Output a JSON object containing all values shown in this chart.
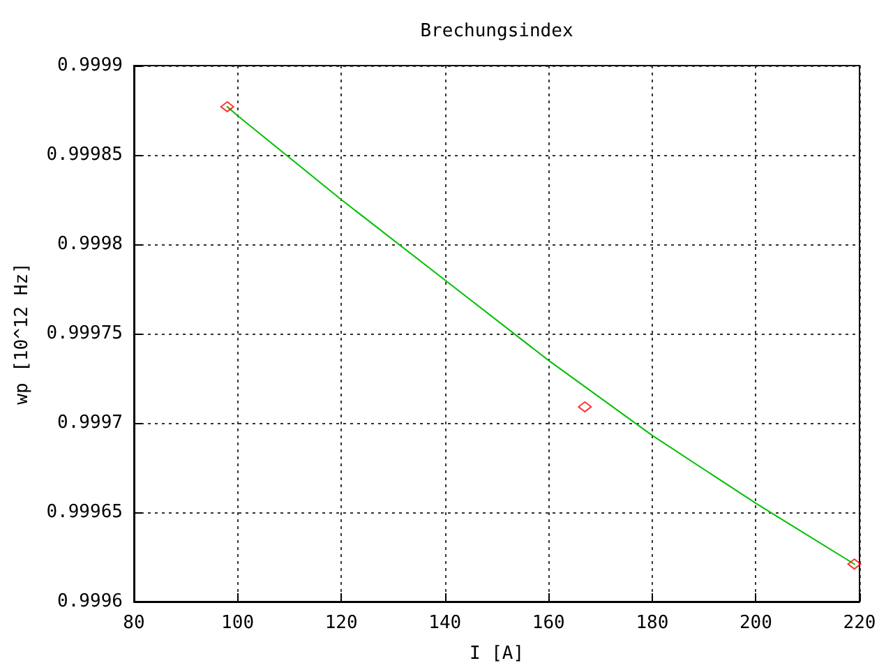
{
  "chart_data": {
    "type": "scatter",
    "title": "Brechungsindex",
    "xlabel": "I [A]",
    "ylabel": "wp [10^12 Hz]",
    "xlim": [
      80,
      220
    ],
    "xticks": [
      80,
      100,
      120,
      140,
      160,
      180,
      200,
      220
    ],
    "ylim": [
      0.9996,
      0.9999
    ],
    "yticks": [
      0.9996,
      0.99965,
      0.9997,
      0.99975,
      0.9998,
      0.99985,
      0.9999
    ],
    "grid": true,
    "series": [
      {
        "type": "line",
        "color": "#00c000",
        "marker": "none",
        "line_style": "solid",
        "x": [
          98,
          100,
          120,
          140,
          160,
          180,
          200,
          219
        ],
        "values": [
          0.999877,
          0.999872,
          0.999825,
          0.99978,
          0.999735,
          0.999693,
          0.999655,
          0.999621
        ]
      },
      {
        "color": "#ff0000",
        "marker": "diamond",
        "x": [
          98,
          167,
          219
        ],
        "values": [
          0.999877,
          0.999709,
          0.999621
        ]
      }
    ]
  }
}
